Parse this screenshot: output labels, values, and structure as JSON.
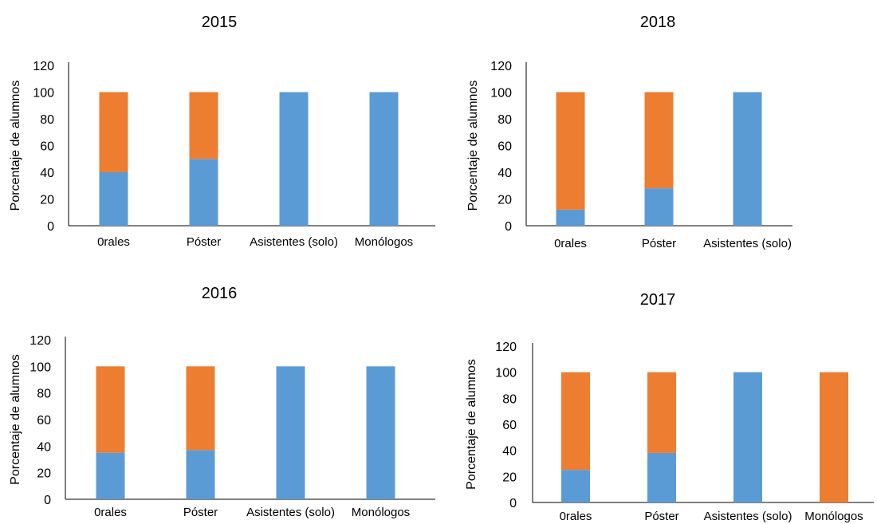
{
  "colors": {
    "series_a": "#5B9BD5",
    "series_b": "#ED7D31",
    "axis": "#000000"
  },
  "chart_data": [
    {
      "type": "bar",
      "stacked": true,
      "title": "2015",
      "xlabel": "",
      "ylabel": "Porcentaje de alumnos",
      "ylim": [
        0,
        120
      ],
      "yticks": [
        "0",
        "20",
        "40",
        "60",
        "80",
        "100",
        "120"
      ],
      "categories": [
        "0rales",
        "Póster",
        "Asistentes (solo)",
        "Monólogos"
      ],
      "series": [
        {
          "color": "#5B9BD5",
          "values": [
            40,
            50,
            100,
            100
          ]
        },
        {
          "color": "#ED7D31",
          "values": [
            60,
            50,
            0,
            0
          ]
        }
      ],
      "grid": false
    },
    {
      "type": "bar",
      "stacked": true,
      "title": "2018",
      "xlabel": "",
      "ylabel": "Porcentaje de alumnos",
      "ylim": [
        0,
        120
      ],
      "yticks": [
        "0",
        "20",
        "40",
        "60",
        "80",
        "100",
        "120"
      ],
      "categories": [
        "0rales",
        "Póster",
        "Asistentes (solo)"
      ],
      "series": [
        {
          "color": "#5B9BD5",
          "values": [
            12,
            28,
            100
          ]
        },
        {
          "color": "#ED7D31",
          "values": [
            88,
            72,
            0
          ]
        }
      ],
      "grid": false
    },
    {
      "type": "bar",
      "stacked": true,
      "title": "2016",
      "xlabel": "",
      "ylabel": "Porcentaje de alumnos",
      "ylim": [
        0,
        120
      ],
      "yticks": [
        "0",
        "20",
        "40",
        "60",
        "80",
        "100",
        "120"
      ],
      "categories": [
        "0rales",
        "Póster",
        "Asistentes (solo)",
        "Monólogos"
      ],
      "series": [
        {
          "color": "#5B9BD5",
          "values": [
            35,
            37,
            100,
            100
          ]
        },
        {
          "color": "#ED7D31",
          "values": [
            65,
            63,
            0,
            0
          ]
        }
      ],
      "grid": false
    },
    {
      "type": "bar",
      "stacked": true,
      "title": "2017",
      "xlabel": "",
      "ylabel": "Porcentaje de alumnos",
      "ylim": [
        0,
        120
      ],
      "yticks": [
        "0",
        "20",
        "40",
        "60",
        "80",
        "100",
        "120"
      ],
      "categories": [
        "0rales",
        "Póster",
        "Asistentes (solo)",
        "Monólogos"
      ],
      "series": [
        {
          "color": "#5B9BD5",
          "values": [
            25,
            38,
            100,
            0
          ]
        },
        {
          "color": "#ED7D31",
          "values": [
            75,
            62,
            0,
            100
          ]
        }
      ],
      "grid": false
    }
  ]
}
